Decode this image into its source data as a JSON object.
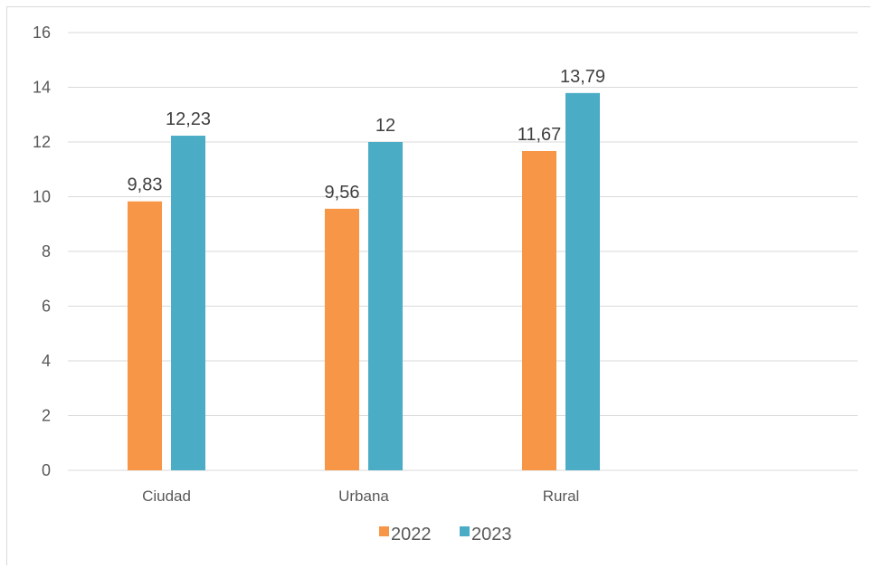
{
  "chart_data": {
    "type": "bar",
    "categories": [
      "Ciudad",
      "Urbana",
      "Rural"
    ],
    "series": [
      {
        "name": "2022",
        "values": [
          9.83,
          9.56,
          11.67
        ],
        "labels": [
          "9,83",
          "9,56",
          "11,67"
        ],
        "color": "#f79646"
      },
      {
        "name": "2023",
        "values": [
          12.23,
          12,
          13.79
        ],
        "labels": [
          "12,23",
          "12",
          "13,79"
        ],
        "color": "#4bacc6"
      }
    ],
    "ylim": [
      0,
      16
    ],
    "yticks": [
      0,
      2,
      4,
      6,
      8,
      10,
      12,
      14,
      16
    ],
    "grid": true,
    "legend": "bottom",
    "gridline_color": "#d9d9d9"
  }
}
